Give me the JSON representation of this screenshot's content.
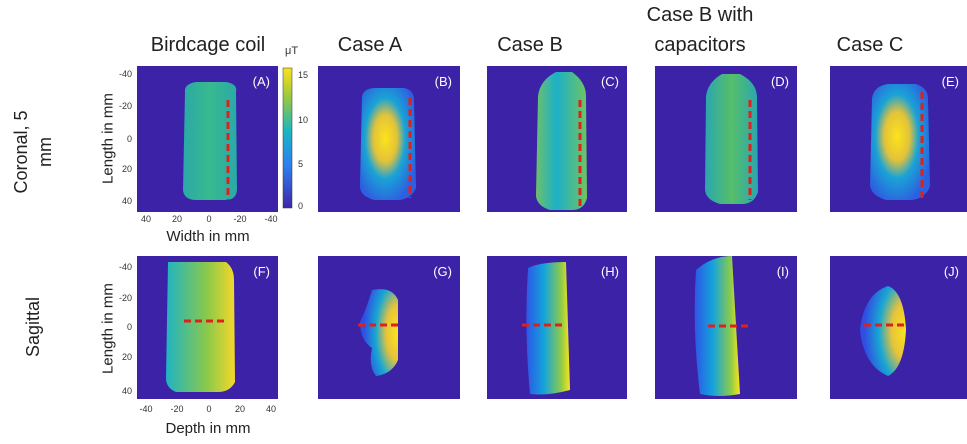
{
  "column_titles": [
    "Birdcage coil",
    "Case A",
    "Case B",
    "Case B with capacitors",
    "Case C"
  ],
  "row_labels": [
    "Coronal, 5 mm",
    "Sagittal"
  ],
  "panels": [
    {
      "label": "(A)"
    },
    {
      "label": "(B)"
    },
    {
      "label": "(C)"
    },
    {
      "label": "(D)"
    },
    {
      "label": "(E)"
    },
    {
      "label": "(F)"
    },
    {
      "label": "(G)"
    },
    {
      "label": "(H)"
    },
    {
      "label": "(I)"
    },
    {
      "label": "(J)"
    }
  ],
  "coronal_axes": {
    "y_label": "Length in mm",
    "x_label": "Width in mm",
    "y_ticks": [
      -40,
      -20,
      0,
      20,
      40
    ],
    "x_ticks": [
      40,
      20,
      0,
      -20,
      -40
    ]
  },
  "sagittal_axes": {
    "y_label": "Length in mm",
    "x_label": "Depth in mm",
    "y_ticks": [
      -40,
      -20,
      0,
      20,
      40
    ],
    "x_ticks": [
      -40,
      -20,
      0,
      20,
      40
    ]
  },
  "colorbar": {
    "unit": "μT",
    "ticks": [
      15,
      10,
      5,
      0
    ]
  }
}
